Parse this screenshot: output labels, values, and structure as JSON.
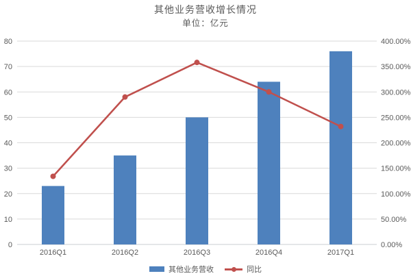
{
  "chart": {
    "title": "其他业务营收增长情况",
    "subtitle": "单位：亿元",
    "legend": [
      {
        "label": "其他业务营收",
        "type": "bar",
        "color": "#4E81BD"
      },
      {
        "label": "同比",
        "type": "line",
        "color": "#C0504D"
      }
    ]
  },
  "chart_data": {
    "type": "bar+line combo",
    "title": "其他业务营收增长情况",
    "subtitle": "单位：亿元",
    "categories": [
      "2016Q1",
      "2016Q2",
      "2016Q3",
      "2016Q4",
      "2017Q1"
    ],
    "series": [
      {
        "name": "其他业务营收",
        "type": "bar",
        "axis": "left",
        "color": "#4E81BD",
        "values": [
          23,
          35,
          50,
          64,
          76
        ]
      },
      {
        "name": "同比",
        "type": "line",
        "axis": "right",
        "color": "#C0504D",
        "values_percent": [
          134,
          290,
          358,
          300,
          232
        ]
      }
    ],
    "left_axis": {
      "min": 0,
      "max": 80,
      "step": 10,
      "ticks": [
        "0",
        "10",
        "20",
        "30",
        "40",
        "50",
        "60",
        "70",
        "80"
      ]
    },
    "right_axis": {
      "min": 0,
      "max": 400,
      "step": 50,
      "ticks": [
        "0.00%",
        "50.00%",
        "100.00%",
        "150.00%",
        "200.00%",
        "250.00%",
        "300.00%",
        "350.00%",
        "400.00%"
      ]
    },
    "grid": true,
    "legend_position": "bottom",
    "colors": {
      "grid": "#D9D9D9",
      "axis_line": "#C9CDD1",
      "tick_text": "#595959"
    }
  }
}
